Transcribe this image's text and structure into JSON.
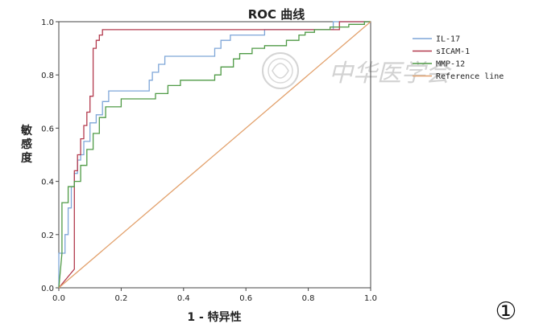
{
  "chart_data": {
    "type": "line",
    "title": "ROC 曲线",
    "xlabel": "1 - 特异性",
    "ylabel": "敏感度",
    "xlim": [
      0,
      1
    ],
    "ylim": [
      0,
      1
    ],
    "xticks": [
      "0.0",
      "0.2",
      "0.4",
      "0.6",
      "0.8",
      "1.0"
    ],
    "yticks": [
      "0.0",
      "0.2",
      "0.4",
      "0.6",
      "0.8",
      "1.0"
    ],
    "grid": false,
    "legend_position": "top-right",
    "panel_label": "①",
    "watermark": "中华医学会",
    "series": [
      {
        "name": "IL-17",
        "color": "#7ea6d8",
        "x": [
          0,
          0,
          0.02,
          0.02,
          0.03,
          0.03,
          0.04,
          0.04,
          0.05,
          0.05,
          0.06,
          0.06,
          0.07,
          0.07,
          0.08,
          0.08,
          0.1,
          0.1,
          0.12,
          0.12,
          0.14,
          0.14,
          0.16,
          0.16,
          0.29,
          0.29,
          0.3,
          0.3,
          0.32,
          0.32,
          0.34,
          0.34,
          0.36,
          0.36,
          0.5,
          0.5,
          0.52,
          0.52,
          0.55,
          0.55,
          0.66,
          0.66,
          0.88,
          0.88,
          1.0
        ],
        "y": [
          0,
          0.13,
          0.13,
          0.2,
          0.2,
          0.3,
          0.3,
          0.38,
          0.38,
          0.43,
          0.43,
          0.48,
          0.48,
          0.5,
          0.5,
          0.55,
          0.55,
          0.62,
          0.62,
          0.65,
          0.65,
          0.7,
          0.7,
          0.74,
          0.74,
          0.78,
          0.78,
          0.81,
          0.81,
          0.84,
          0.84,
          0.87,
          0.87,
          0.87,
          0.87,
          0.9,
          0.9,
          0.93,
          0.93,
          0.95,
          0.95,
          0.97,
          0.97,
          1.0,
          1.0
        ]
      },
      {
        "name": "sICAM-1",
        "color": "#b33a4e",
        "x": [
          0,
          0.05,
          0.05,
          0.06,
          0.06,
          0.07,
          0.07,
          0.08,
          0.08,
          0.09,
          0.09,
          0.1,
          0.1,
          0.11,
          0.11,
          0.12,
          0.12,
          0.13,
          0.13,
          0.14,
          0.14,
          0.9,
          0.9,
          1.0
        ],
        "y": [
          0,
          0.07,
          0.44,
          0.44,
          0.5,
          0.5,
          0.56,
          0.56,
          0.61,
          0.61,
          0.66,
          0.66,
          0.72,
          0.72,
          0.9,
          0.9,
          0.93,
          0.93,
          0.95,
          0.95,
          0.97,
          0.97,
          1.0,
          1.0
        ]
      },
      {
        "name": "MMP-12",
        "color": "#4f9a45",
        "x": [
          0,
          0.01,
          0.01,
          0.03,
          0.03,
          0.05,
          0.05,
          0.07,
          0.07,
          0.09,
          0.09,
          0.11,
          0.11,
          0.13,
          0.13,
          0.15,
          0.15,
          0.2,
          0.2,
          0.31,
          0.31,
          0.35,
          0.35,
          0.39,
          0.39,
          0.5,
          0.5,
          0.52,
          0.52,
          0.56,
          0.56,
          0.58,
          0.58,
          0.62,
          0.62,
          0.66,
          0.66,
          0.73,
          0.73,
          0.77,
          0.77,
          0.79,
          0.79,
          0.82,
          0.82,
          0.87,
          0.87,
          0.93,
          0.93,
          0.98,
          0.98,
          1.0
        ],
        "y": [
          0,
          0.13,
          0.32,
          0.32,
          0.38,
          0.38,
          0.4,
          0.4,
          0.46,
          0.46,
          0.52,
          0.52,
          0.58,
          0.58,
          0.64,
          0.64,
          0.68,
          0.68,
          0.71,
          0.71,
          0.73,
          0.73,
          0.76,
          0.76,
          0.78,
          0.78,
          0.8,
          0.8,
          0.83,
          0.83,
          0.86,
          0.86,
          0.88,
          0.88,
          0.9,
          0.9,
          0.91,
          0.91,
          0.93,
          0.93,
          0.95,
          0.95,
          0.96,
          0.96,
          0.97,
          0.97,
          0.98,
          0.98,
          0.99,
          0.99,
          1.0,
          1.0
        ]
      },
      {
        "name": "Reference line",
        "color": "#e2a06b",
        "x": [
          0,
          1
        ],
        "y": [
          0,
          1
        ]
      }
    ]
  }
}
